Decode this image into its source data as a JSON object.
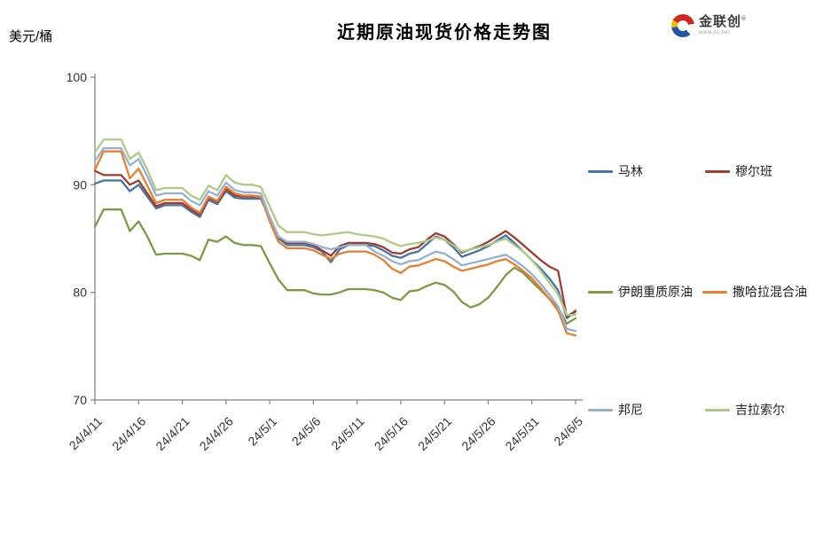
{
  "title": "近期原油现货价格走势图",
  "unit_label": "美元/桶",
  "logo": {
    "name": "金联创",
    "reg_mark": "®",
    "url_text": "www.jlc.net"
  },
  "chart_data": {
    "type": "line",
    "title": "近期原油现货价格走势图",
    "ylabel": "美元/桶",
    "ylim": [
      70,
      100
    ],
    "y_ticks": [
      70,
      80,
      90,
      100
    ],
    "grid": false,
    "legend_position": "right",
    "x_tick_labels": [
      "24/4/11",
      "24/4/16",
      "24/4/21",
      "24/4/26",
      "24/5/1",
      "24/5/6",
      "24/5/11",
      "24/5/16",
      "24/5/21",
      "24/5/26",
      "24/5/31",
      "24/6/5"
    ],
    "x": [
      "24/4/11",
      "24/4/12",
      "24/4/13",
      "24/4/14",
      "24/4/15",
      "24/4/16",
      "24/4/17",
      "24/4/18",
      "24/4/19",
      "24/4/20",
      "24/4/21",
      "24/4/22",
      "24/4/23",
      "24/4/24",
      "24/4/25",
      "24/4/26",
      "24/4/27",
      "24/4/28",
      "24/4/29",
      "24/4/30",
      "24/5/1",
      "24/5/2",
      "24/5/3",
      "24/5/4",
      "24/5/5",
      "24/5/6",
      "24/5/7",
      "24/5/8",
      "24/5/9",
      "24/5/10",
      "24/5/11",
      "24/5/12",
      "24/5/13",
      "24/5/14",
      "24/5/15",
      "24/5/16",
      "24/5/17",
      "24/5/18",
      "24/5/19",
      "24/5/20",
      "24/5/21",
      "24/5/22",
      "24/5/23",
      "24/5/24",
      "24/5/25",
      "24/5/26",
      "24/5/27",
      "24/5/28",
      "24/5/29",
      "24/5/30",
      "24/5/31",
      "24/6/1",
      "24/6/2",
      "24/6/3",
      "24/6/4",
      "24/6/5"
    ],
    "series": [
      {
        "name": "马林",
        "color": "#4575A7",
        "values": [
          90.1,
          90.4,
          90.4,
          90.4,
          89.4,
          90.0,
          88.9,
          87.8,
          88.1,
          88.1,
          88.1,
          87.5,
          87.0,
          88.6,
          88.2,
          89.4,
          88.8,
          88.7,
          88.7,
          88.7,
          86.8,
          85.0,
          84.4,
          84.4,
          84.4,
          84.2,
          83.8,
          82.8,
          84.0,
          84.4,
          84.4,
          84.4,
          84.3,
          83.9,
          83.4,
          83.2,
          83.6,
          83.8,
          84.5,
          85.2,
          84.9,
          84.2,
          83.3,
          83.6,
          83.9,
          84.3,
          84.8,
          85.3,
          84.6,
          83.8,
          83.0,
          82.2,
          81.3,
          80.2,
          77.6,
          78.2
        ]
      },
      {
        "name": "穆尔班",
        "color": "#9E3D32",
        "values": [
          91.3,
          90.9,
          90.9,
          90.9,
          90.0,
          90.4,
          89.2,
          88.0,
          88.3,
          88.3,
          88.3,
          87.7,
          87.2,
          88.8,
          88.4,
          89.6,
          89.0,
          88.9,
          88.9,
          88.9,
          87.0,
          85.2,
          84.6,
          84.6,
          84.6,
          84.4,
          83.9,
          83.4,
          84.3,
          84.6,
          84.6,
          84.6,
          84.5,
          84.2,
          83.7,
          83.6,
          84.0,
          84.2,
          84.9,
          85.5,
          85.2,
          84.5,
          83.7,
          84.0,
          84.3,
          84.7,
          85.2,
          85.7,
          85.1,
          84.4,
          83.7,
          83.0,
          82.4,
          82.0,
          77.7,
          78.3
        ]
      },
      {
        "name": "伊朗重质原油",
        "color": "#7D9B44",
        "values": [
          86.1,
          87.7,
          87.7,
          87.7,
          85.7,
          86.6,
          85.2,
          83.5,
          83.6,
          83.6,
          83.6,
          83.4,
          83.0,
          84.9,
          84.7,
          85.2,
          84.6,
          84.4,
          84.4,
          84.3,
          82.7,
          81.2,
          80.2,
          80.2,
          80.2,
          79.9,
          79.8,
          79.8,
          80.0,
          80.3,
          80.3,
          80.3,
          80.2,
          80.0,
          79.5,
          79.3,
          80.1,
          80.2,
          80.6,
          80.9,
          80.7,
          80.1,
          79.1,
          78.6,
          78.9,
          79.5,
          80.5,
          81.6,
          82.3,
          81.8,
          81.0,
          80.2,
          79.4,
          78.6,
          77.1,
          77.6
        ]
      },
      {
        "name": "撒哈拉混合油",
        "color": "#E87E30",
        "values": [
          91.4,
          93.1,
          93.1,
          93.1,
          90.6,
          91.5,
          89.9,
          88.3,
          88.6,
          88.6,
          88.6,
          87.9,
          87.4,
          88.9,
          88.5,
          89.8,
          89.2,
          89.0,
          89.0,
          88.9,
          86.6,
          84.7,
          84.1,
          84.1,
          84.1,
          83.9,
          83.5,
          83.1,
          83.6,
          83.8,
          83.8,
          83.8,
          83.5,
          83.0,
          82.2,
          81.8,
          82.4,
          82.5,
          82.8,
          83.1,
          82.9,
          82.4,
          82.0,
          82.2,
          82.4,
          82.6,
          82.9,
          83.1,
          82.6,
          82.0,
          81.3,
          80.4,
          79.4,
          78.3,
          76.2,
          76.0
        ]
      },
      {
        "name": "邦尼",
        "color": "#94B1D4",
        "values": [
          92.2,
          93.4,
          93.4,
          93.4,
          91.8,
          92.4,
          90.8,
          89.0,
          89.2,
          89.2,
          89.2,
          88.5,
          88.1,
          89.4,
          89.0,
          90.2,
          89.5,
          89.3,
          89.3,
          89.2,
          87.0,
          85.2,
          84.7,
          84.7,
          84.7,
          84.5,
          84.2,
          84.0,
          84.2,
          84.4,
          84.4,
          84.4,
          83.8,
          83.4,
          82.9,
          82.6,
          82.9,
          83.0,
          83.4,
          83.8,
          83.6,
          83.1,
          82.5,
          82.7,
          82.9,
          83.1,
          83.3,
          83.5,
          83.0,
          82.4,
          81.7,
          80.8,
          79.8,
          78.7,
          76.6,
          76.4
        ]
      },
      {
        "name": "吉拉索尔",
        "color": "#B0C984",
        "values": [
          93.0,
          94.2,
          94.2,
          94.2,
          92.4,
          93.0,
          91.4,
          89.5,
          89.7,
          89.7,
          89.7,
          89.0,
          88.6,
          89.9,
          89.5,
          90.9,
          90.2,
          90.0,
          90.0,
          89.8,
          88.0,
          86.2,
          85.6,
          85.6,
          85.6,
          85.4,
          85.3,
          85.4,
          85.5,
          85.6,
          85.4,
          85.3,
          85.2,
          85.0,
          84.6,
          84.3,
          84.5,
          84.6,
          84.8,
          85.1,
          84.9,
          84.4,
          83.8,
          84.0,
          84.2,
          84.4,
          84.7,
          85.0,
          84.4,
          83.8,
          83.0,
          82.0,
          80.9,
          79.8,
          77.9,
          77.9
        ]
      }
    ]
  }
}
